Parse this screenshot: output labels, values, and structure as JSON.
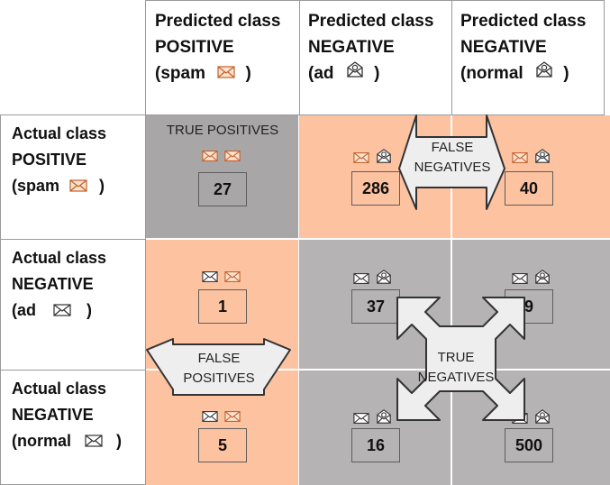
{
  "columns": [
    {
      "line1": "Predicted class",
      "line2": "POSITIVE",
      "line3": "(spam",
      "close": ")",
      "icon": "mail-envelope-icon"
    },
    {
      "line1": "Predicted class",
      "line2": "NEGATIVE",
      "line3": "(ad",
      "close": ")",
      "icon": "ad-mail-icon"
    },
    {
      "line1": "Predicted class",
      "line2": "NEGATIVE",
      "line3": "(normal",
      "close": ")",
      "icon": "ad-mail-icon"
    }
  ],
  "rows": [
    {
      "line1": "Actual class",
      "line2": "POSITIVE",
      "line3": "(spam",
      "close": ")",
      "icon": "mail-envelope-icon"
    },
    {
      "line1": "Actual class",
      "line2": "NEGATIVE",
      "line3": "(ad",
      "close": ")",
      "icon": "mail-envelope-icon"
    },
    {
      "line1": "Actual class",
      "line2": "NEGATIVE",
      "line3": "(normal",
      "close": ")",
      "icon": "mail-envelope-icon"
    }
  ],
  "cells": [
    [
      "27",
      "286",
      "40"
    ],
    [
      "1",
      "37",
      "9"
    ],
    [
      "5",
      "16",
      "500"
    ]
  ],
  "labels": {
    "true_positives": "TRUE POSITIVES",
    "false_negatives_1": "FALSE",
    "false_negatives_2": "NEGATIVES",
    "false_positives_1": "FALSE",
    "false_positives_2": "POSITIVES",
    "true_negatives_1": "TRUE",
    "true_negatives_2": "NEGATIVES"
  },
  "colors": {
    "false_region": "#fdc2a0",
    "true_region": "#b5b3b3",
    "arrow_fill": "#eeeeee",
    "arrow_stroke": "#333333"
  }
}
